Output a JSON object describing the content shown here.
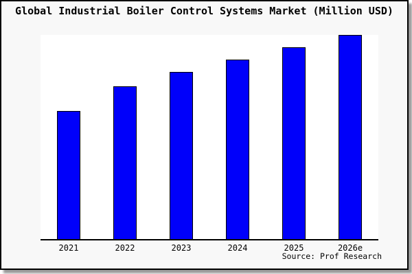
{
  "chart_data": {
    "type": "bar",
    "title": "Global Industrial Boiler Control Systems Market (Million USD)",
    "categories": [
      "2021",
      "2022",
      "2023",
      "2024",
      "2025",
      "2026e"
    ],
    "values": [
      63,
      75,
      82,
      88,
      94,
      100
    ],
    "value_note": "no y-axis or data labels shown; values estimated as percent of tallest bar (2026e = 100)",
    "xlabel": "",
    "ylabel": "",
    "ylim": [
      0,
      100
    ],
    "grid": false,
    "legend": "none",
    "bar_color": "#0000fa",
    "bar_border_color": "#000000",
    "background_color": "#f8f8f8",
    "plot_background_color": "#ffffff"
  },
  "footer": {
    "source": "Source: Prof Research"
  }
}
